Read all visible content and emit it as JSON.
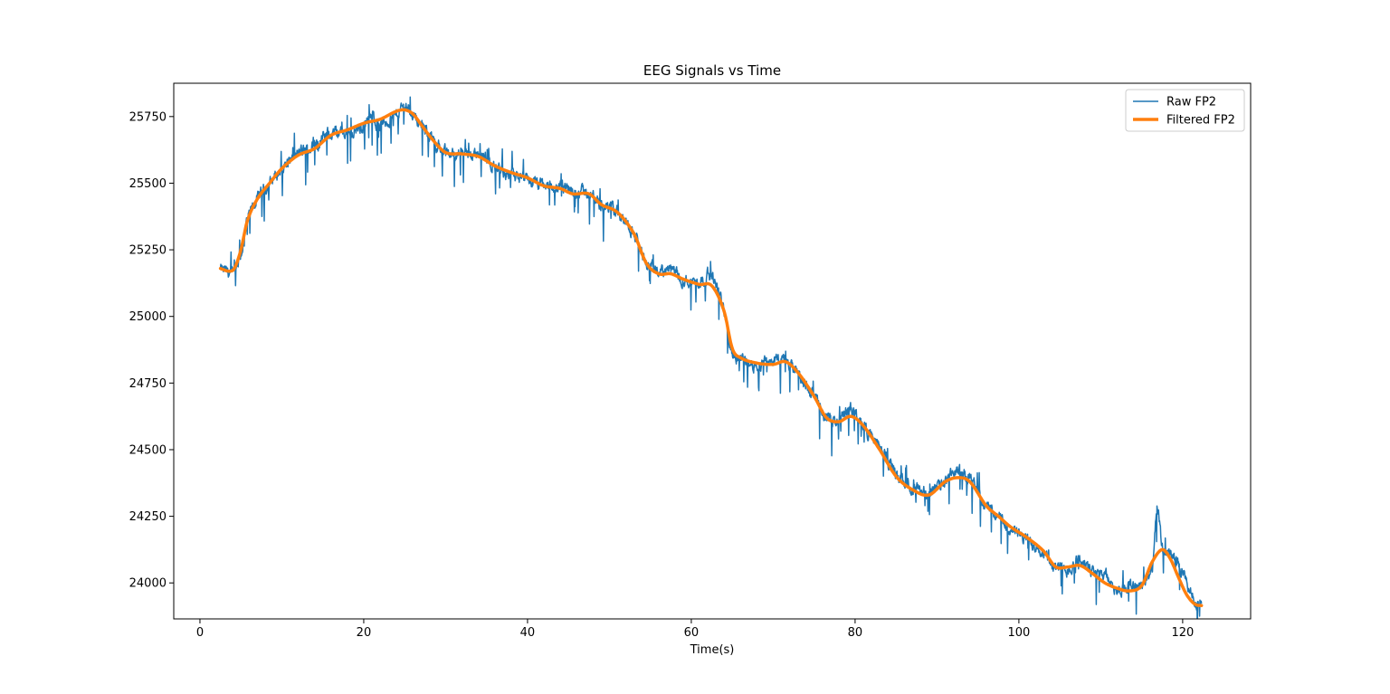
{
  "chart_data": {
    "type": "line",
    "title": "EEG Signals vs Time",
    "xlabel": "Time(s)",
    "ylabel": "",
    "xlim": [
      -3.2,
      128.3
    ],
    "ylim": [
      23865,
      25875
    ],
    "xticks": [
      0,
      20,
      40,
      60,
      80,
      100,
      120
    ],
    "yticks": [
      24000,
      24250,
      24500,
      24750,
      25000,
      25250,
      25500,
      25750
    ],
    "grid": false,
    "legend_position": "top-right",
    "series": [
      {
        "name": "Raw FP2",
        "color": "#1f77b4",
        "style": "noisy",
        "x": [
          2.5,
          3.5,
          4.2,
          5,
          5.8,
          7,
          8.5,
          10,
          12,
          14,
          16,
          18,
          20,
          21,
          22,
          24,
          25,
          26,
          27.5,
          28.5,
          30,
          32,
          34,
          36,
          38,
          40,
          42,
          44,
          46,
          47.5,
          49,
          51,
          53,
          54.5,
          56,
          57.5,
          59,
          61,
          62.5,
          64,
          65,
          66,
          68,
          70,
          71.5,
          73,
          75,
          76.5,
          78,
          79.5,
          81,
          83,
          85,
          87,
          89,
          91,
          92.5,
          94,
          96,
          97.5,
          99,
          101,
          103,
          104.5,
          106,
          107.5,
          109,
          110.5,
          112,
          113.5,
          115,
          116.3,
          116.9,
          117.6,
          118.5,
          119.5,
          120.5,
          121.5,
          122.3
        ],
        "values": [
          25175,
          25165,
          25160,
          25230,
          25360,
          25440,
          25500,
          25555,
          25610,
          25640,
          25690,
          25690,
          25715,
          25750,
          25720,
          25760,
          25790,
          25760,
          25700,
          25660,
          25615,
          25610,
          25605,
          25560,
          25530,
          25510,
          25490,
          25480,
          25470,
          25460,
          25420,
          25390,
          25310,
          25200,
          25170,
          25175,
          25140,
          25130,
          25150,
          25020,
          24860,
          24840,
          24820,
          24840,
          24830,
          24780,
          24700,
          24620,
          24610,
          24650,
          24590,
          24510,
          24410,
          24360,
          24340,
          24380,
          24420,
          24390,
          24290,
          24250,
          24200,
          24160,
          24120,
          24060,
          24050,
          24090,
          24040,
          24030,
          23980,
          23990,
          24000,
          24060,
          24270,
          24120,
          24100,
          24060,
          24000,
          23930,
          23920
        ]
      },
      {
        "name": "Filtered FP2",
        "color": "#ff7f0e",
        "style": "smooth",
        "x": [
          2.5,
          3.5,
          4.2,
          5,
          5.8,
          7,
          8.5,
          10,
          12,
          14,
          16,
          18,
          20,
          22,
          24,
          25,
          26,
          27,
          28.5,
          30,
          32,
          34,
          36,
          38,
          40,
          42,
          44,
          45.5,
          47.5,
          49,
          51,
          53,
          54.5,
          56,
          57.5,
          59,
          61,
          62.5,
          64,
          65,
          66,
          68,
          70,
          71.5,
          73,
          75,
          76.5,
          78,
          79.5,
          81,
          83,
          85,
          87,
          89,
          91,
          92.5,
          94,
          96,
          97.5,
          99,
          101,
          103,
          104.5,
          106,
          107.5,
          109,
          110.5,
          112,
          113.5,
          115,
          116.3,
          117.5,
          118.5,
          119.5,
          120.5,
          121.5,
          122.3
        ],
        "values": [
          25180,
          25170,
          25180,
          25250,
          25360,
          25440,
          25500,
          25555,
          25605,
          25630,
          25680,
          25700,
          25725,
          25740,
          25770,
          25775,
          25760,
          25720,
          25660,
          25615,
          25610,
          25600,
          25565,
          25540,
          25520,
          25490,
          25480,
          25460,
          25460,
          25420,
          25390,
          25310,
          25200,
          25160,
          25160,
          25140,
          25120,
          25115,
          25020,
          24880,
          24845,
          24825,
          24820,
          24830,
          24790,
          24700,
          24620,
          24605,
          24625,
          24590,
          24500,
          24400,
          24350,
          24330,
          24380,
          24395,
          24380,
          24290,
          24250,
          24210,
          24170,
          24120,
          24060,
          24060,
          24065,
          24035,
          24000,
          23980,
          23970,
          23990,
          24080,
          24125,
          24090,
          24020,
          23955,
          23920,
          23915
        ]
      }
    ]
  }
}
